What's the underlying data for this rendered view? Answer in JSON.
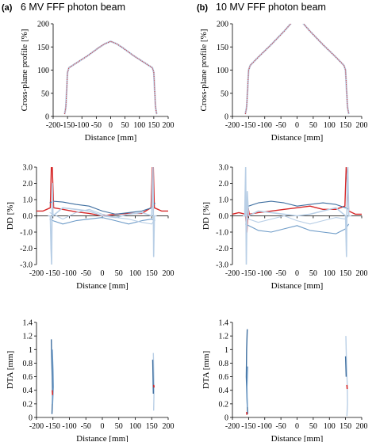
{
  "panels": [
    {
      "label": "(a)",
      "title": "6 MV FFF photon beam"
    },
    {
      "label": "(b)",
      "title": "10 MV FFF photon beam"
    }
  ],
  "colors": {
    "highlight": "#d62728",
    "series_dark": "#3f6fa0",
    "series_mid": "#6f9cc8",
    "series_light": "#b9cfe6"
  },
  "chart_data": [
    {
      "id": "profile_6mv",
      "type": "line",
      "panel": "(a)",
      "xlabel": "Distance [mm]",
      "ylabel": "Cross-plane profile [%]",
      "xlim": [
        -200,
        200
      ],
      "ylim": [
        0,
        200
      ],
      "xticks": [
        -200,
        -150,
        -100,
        -50,
        0,
        50,
        100,
        150,
        200
      ],
      "yticks": [
        0,
        50,
        100,
        150,
        200
      ],
      "x": [
        -160,
        -156,
        -153,
        -150,
        -145,
        -120,
        -80,
        -40,
        -20,
        0,
        20,
        40,
        80,
        120,
        145,
        150,
        153,
        156,
        160
      ],
      "y": [
        5,
        20,
        55,
        95,
        105,
        115,
        131,
        149,
        157,
        162,
        157,
        149,
        131,
        115,
        105,
        95,
        55,
        20,
        5
      ]
    },
    {
      "id": "profile_10mv",
      "type": "line",
      "panel": "(b)",
      "xlabel": "Distance [mm]",
      "ylabel": "Cross-plane profile [%]",
      "xlim": [
        -200,
        200
      ],
      "ylim": [
        0,
        200
      ],
      "xticks": [
        -200,
        -150,
        -100,
        -50,
        0,
        50,
        100,
        150,
        200
      ],
      "yticks": [
        0,
        50,
        100,
        150,
        200
      ],
      "x": [
        -160,
        -156,
        -153,
        -150,
        -145,
        -120,
        -80,
        -40,
        -20,
        0,
        20,
        40,
        80,
        120,
        145,
        150,
        153,
        156,
        160
      ],
      "y": [
        5,
        20,
        60,
        100,
        110,
        128,
        155,
        184,
        200,
        213,
        200,
        184,
        155,
        128,
        110,
        100,
        60,
        20,
        5
      ]
    },
    {
      "id": "dd_6mv",
      "type": "line",
      "panel": "(a)",
      "xlabel": "Distance [mm]",
      "ylabel": "DD [%]",
      "xlim": [
        -200,
        200
      ],
      "ylim": [
        -3.0,
        3.0
      ],
      "xticks": [
        -200,
        -150,
        -100,
        -50,
        0,
        50,
        100,
        150,
        200
      ],
      "yticks": [
        -3.0,
        -2.0,
        -1.0,
        0.0,
        1.0,
        2.0,
        3.0
      ],
      "series": [
        {
          "x": [
            -200,
            -180,
            -158,
            -155,
            -152,
            -148,
            -120,
            -80,
            -40,
            0,
            40,
            80,
            120,
            148,
            152,
            155,
            158,
            180,
            200
          ],
          "y": [
            0.3,
            0.3,
            0.5,
            3.0,
            3.0,
            0.5,
            0.4,
            0.25,
            0.15,
            0.0,
            0.1,
            0.15,
            0.15,
            0.5,
            3.0,
            3.0,
            0.5,
            0.3,
            0.3
          ]
        },
        {
          "x": [
            -160,
            -150,
            -120,
            -80,
            -40,
            0,
            40,
            80,
            120,
            150,
            160
          ],
          "y": [
            0.8,
            0.9,
            0.85,
            0.7,
            0.6,
            0.3,
            0.1,
            0.2,
            0.3,
            0.5,
            0.8
          ]
        },
        {
          "x": [
            -160,
            -150,
            -120,
            -80,
            -40,
            0,
            40,
            80,
            120,
            150,
            160
          ],
          "y": [
            -0.2,
            -0.3,
            -0.5,
            -0.3,
            -0.2,
            -0.1,
            -0.3,
            -0.5,
            -0.3,
            -0.2,
            -0.3
          ]
        },
        {
          "x": [
            -160,
            -150,
            -120,
            -80,
            -40,
            0,
            40,
            80,
            120,
            150,
            160
          ],
          "y": [
            0.2,
            0.1,
            -0.2,
            0.2,
            0.4,
            0.1,
            -0.1,
            -0.2,
            -0.4,
            -0.5,
            -0.2
          ]
        },
        {
          "x": [
            -165,
            -158,
            -156,
            -154,
            -152,
            -150,
            -120,
            -80,
            -40,
            0,
            40,
            80,
            120,
            150,
            152,
            154,
            156,
            158,
            165
          ],
          "y": [
            0.0,
            0.0,
            -2.0,
            -3.0,
            2.0,
            0.0,
            0.5,
            0.4,
            0.3,
            0.0,
            -0.1,
            0.1,
            0.2,
            0.0,
            2.0,
            3.0,
            -2.5,
            0.0,
            0.0
          ]
        }
      ]
    },
    {
      "id": "dd_10mv",
      "type": "line",
      "panel": "(b)",
      "xlabel": "Distance [mm]",
      "ylabel": "DD [%]",
      "xlim": [
        -200,
        200
      ],
      "ylim": [
        -3.0,
        3.0
      ],
      "xticks": [
        -200,
        -150,
        -100,
        -50,
        0,
        50,
        100,
        150,
        200
      ],
      "yticks": [
        -3.0,
        -2.0,
        -1.0,
        0.0,
        1.0,
        2.0,
        3.0
      ],
      "series": [
        {
          "x": [
            -200,
            -180,
            -160,
            -155,
            -152,
            -148,
            -120,
            -80,
            -40,
            0,
            40,
            80,
            120,
            148,
            152,
            155,
            160,
            180,
            200
          ],
          "y": [
            0.1,
            0.2,
            0.1,
            -1.0,
            0.6,
            0.1,
            0.2,
            0.3,
            0.4,
            0.5,
            0.6,
            0.4,
            0.4,
            0.6,
            3.0,
            2.0,
            0.3,
            0.1,
            0.1
          ]
        },
        {
          "x": [
            -160,
            -150,
            -120,
            -80,
            -40,
            0,
            40,
            80,
            120,
            150,
            160
          ],
          "y": [
            0.4,
            0.6,
            0.8,
            0.9,
            0.8,
            0.6,
            0.7,
            0.8,
            0.7,
            0.5,
            0.4
          ]
        },
        {
          "x": [
            -160,
            -150,
            -120,
            -80,
            -40,
            0,
            40,
            80,
            120,
            150,
            160
          ],
          "y": [
            -0.5,
            -0.6,
            -0.9,
            -1.0,
            -0.8,
            -0.6,
            -0.9,
            -1.0,
            -1.1,
            -0.8,
            -0.5
          ]
        },
        {
          "x": [
            -160,
            -150,
            -120,
            -80,
            -40,
            0,
            40,
            80,
            120,
            150,
            160
          ],
          "y": [
            0.0,
            -0.2,
            -0.4,
            -0.2,
            0.0,
            -0.3,
            -0.5,
            -0.3,
            -0.1,
            -0.2,
            0.0
          ]
        },
        {
          "x": [
            -168,
            -162,
            -159,
            -157,
            -154,
            -150,
            -120,
            -80,
            -40,
            0,
            40,
            80,
            120,
            150,
            153,
            155,
            157,
            160,
            168
          ],
          "y": [
            0.0,
            0.0,
            3.0,
            -3.0,
            1.5,
            0.0,
            0.3,
            0.2,
            0.1,
            0.0,
            0.1,
            0.3,
            0.5,
            0.0,
            -2.5,
            2.5,
            3.0,
            0.0,
            0.0
          ]
        }
      ]
    },
    {
      "id": "dta_6mv",
      "type": "line",
      "panel": "(a)",
      "xlabel": "Distance [mm]",
      "ylabel": "DTA [mm]",
      "xlim": [
        -200,
        200
      ],
      "ylim": [
        0,
        1.4
      ],
      "xticks": [
        -200,
        -150,
        -100,
        -50,
        0,
        50,
        100,
        150,
        200
      ],
      "yticks": [
        0,
        0.2,
        0.4,
        0.6,
        0.8,
        1.0,
        1.2,
        1.4
      ],
      "series": [
        {
          "x": [
            -155,
            -154,
            -152,
            -151,
            -153
          ],
          "y": [
            1.15,
            0.9,
            0.6,
            0.3,
            0.05
          ]
        },
        {
          "x": [
            -152,
            -150,
            -149,
            -151
          ],
          "y": [
            1.0,
            0.7,
            0.45,
            0.2
          ]
        },
        {
          "x": [
            155,
            156,
            157,
            156
          ],
          "y": [
            0.95,
            0.7,
            0.4,
            0.1
          ]
        },
        {
          "x": [
            153,
            154,
            155
          ],
          "y": [
            0.85,
            0.6,
            0.35
          ]
        },
        {
          "x": [
            -152,
            -151
          ],
          "y": [
            0.4,
            0.33
          ]
        },
        {
          "x": [
            156,
            157
          ],
          "y": [
            0.48,
            0.44
          ]
        }
      ]
    },
    {
      "id": "dta_10mv",
      "type": "line",
      "panel": "(b)",
      "xlabel": "Distance [mm]",
      "ylabel": "DTA [mm]",
      "xlim": [
        -200,
        200
      ],
      "ylim": [
        0,
        1.4
      ],
      "xticks": [
        -200,
        -150,
        -100,
        -50,
        0,
        50,
        100,
        150,
        200
      ],
      "yticks": [
        0,
        0.2,
        0.4,
        0.6,
        0.8,
        1.0,
        1.2,
        1.4
      ],
      "series": [
        {
          "x": [
            -154,
            -156,
            -157,
            -155,
            -153
          ],
          "y": [
            1.3,
            1.0,
            0.6,
            0.3,
            0.05
          ]
        },
        {
          "x": [
            -153,
            -155,
            -154
          ],
          "y": [
            0.75,
            0.45,
            0.15
          ]
        },
        {
          "x": [
            151,
            153,
            155,
            156,
            154
          ],
          "y": [
            1.2,
            0.8,
            0.5,
            0.2,
            0.02
          ]
        },
        {
          "x": [
            150,
            152
          ],
          "y": [
            0.9,
            0.6
          ]
        },
        {
          "x": [
            -156,
            -155
          ],
          "y": [
            0.08,
            0.04
          ]
        },
        {
          "x": [
            154,
            155
          ],
          "y": [
            0.48,
            0.42
          ]
        }
      ]
    }
  ]
}
